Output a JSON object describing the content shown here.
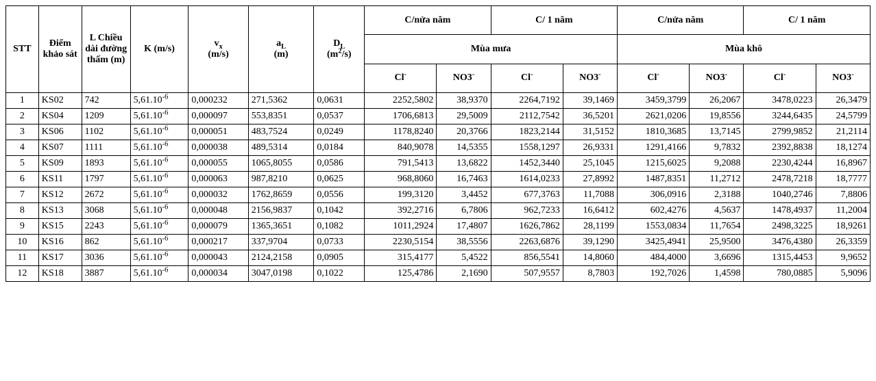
{
  "table": {
    "header": {
      "stt": "STT",
      "diem": "Điểm khảo sát",
      "l": "L Chiều dài đường thấm (m)",
      "k": "K (m/s)",
      "vx_line1": "v",
      "vx_sub": "x",
      "vx_line2": "(m/s)",
      "al_line1": "a",
      "al_sub": "L",
      "al_line2": "(m)",
      "dl_line1": "D",
      "dl_sub": "L",
      "dl_line2": "(m",
      "dl_sup": "2",
      "dl_line3": "/s)",
      "c_nua_nam": "C/nửa năm",
      "c_1_nam": "C/ 1 năm",
      "mua_mua": "Mùa mưa",
      "mua_kho": "Mùa khô",
      "cl_label": "Cl",
      "cl_sup": "-",
      "no3_label": "NO3",
      "no3_sup": "-"
    },
    "k_display": {
      "mantissa": "5,61.10",
      "exp": "-6"
    },
    "col_align": [
      "c-idx",
      "c-left",
      "c-left",
      "c-left",
      "c-left",
      "c-left",
      "c-left",
      "c-right",
      "c-right",
      "c-right",
      "c-right",
      "c-right",
      "c-right",
      "c-right",
      "c-right"
    ],
    "rows": [
      {
        "stt": "1",
        "diem": "KS02",
        "l": "742",
        "vx": "0,000232",
        "al": "271,5362",
        "dl": "0,0631",
        "mm_hn_cl": "2252,5802",
        "mm_hn_no3": "38,9370",
        "mm_1n_cl": "2264,7192",
        "mm_1n_no3": "39,1469",
        "mk_hn_cl": "3459,3799",
        "mk_hn_no3": "26,2067",
        "mk_1n_cl": "3478,0223",
        "mk_1n_no3": "26,3479"
      },
      {
        "stt": "2",
        "diem": "KS04",
        "l": "1209",
        "vx": "0,000097",
        "al": "553,8351",
        "dl": "0,0537",
        "mm_hn_cl": "1706,6813",
        "mm_hn_no3": "29,5009",
        "mm_1n_cl": "2112,7542",
        "mm_1n_no3": "36,5201",
        "mk_hn_cl": "2621,0206",
        "mk_hn_no3": "19,8556",
        "mk_1n_cl": "3244,6435",
        "mk_1n_no3": "24,5799"
      },
      {
        "stt": "3",
        "diem": "KS06",
        "l": "1102",
        "vx": "0,000051",
        "al": "483,7524",
        "dl": "0,0249",
        "mm_hn_cl": "1178,8240",
        "mm_hn_no3": "20,3766",
        "mm_1n_cl": "1823,2144",
        "mm_1n_no3": "31,5152",
        "mk_hn_cl": "1810,3685",
        "mk_hn_no3": "13,7145",
        "mk_1n_cl": "2799,9852",
        "mk_1n_no3": "21,2114"
      },
      {
        "stt": "4",
        "diem": "KS07",
        "l": "1111",
        "vx": "0,000038",
        "al": "489,5314",
        "dl": "0,0184",
        "mm_hn_cl": "840,9078",
        "mm_hn_no3": "14,5355",
        "mm_1n_cl": "1558,1297",
        "mm_1n_no3": "26,9331",
        "mk_hn_cl": "1291,4166",
        "mk_hn_no3": "9,7832",
        "mk_1n_cl": "2392,8838",
        "mk_1n_no3": "18,1274"
      },
      {
        "stt": "5",
        "diem": "KS09",
        "l": "1893",
        "vx": "0,000055",
        "al": "1065,8055",
        "dl": "0,0586",
        "mm_hn_cl": "791,5413",
        "mm_hn_no3": "13,6822",
        "mm_1n_cl": "1452,3440",
        "mm_1n_no3": "25,1045",
        "mk_hn_cl": "1215,6025",
        "mk_hn_no3": "9,2088",
        "mk_1n_cl": "2230,4244",
        "mk_1n_no3": "16,8967"
      },
      {
        "stt": "6",
        "diem": "KS11",
        "l": "1797",
        "vx": "0,000063",
        "al": "987,8210",
        "dl": "0,0625",
        "mm_hn_cl": "968,8060",
        "mm_hn_no3": "16,7463",
        "mm_1n_cl": "1614,0233",
        "mm_1n_no3": "27,8992",
        "mk_hn_cl": "1487,8351",
        "mk_hn_no3": "11,2712",
        "mk_1n_cl": "2478,7218",
        "mk_1n_no3": "18,7777"
      },
      {
        "stt": "7",
        "diem": "KS12",
        "l": "2672",
        "vx": "0,000032",
        "al": "1762,8659",
        "dl": "0,0556",
        "mm_hn_cl": "199,3120",
        "mm_hn_no3": "3,4452",
        "mm_1n_cl": "677,3763",
        "mm_1n_no3": "11,7088",
        "mk_hn_cl": "306,0916",
        "mk_hn_no3": "2,3188",
        "mk_1n_cl": "1040,2746",
        "mk_1n_no3": "7,8806"
      },
      {
        "stt": "8",
        "diem": "KS13",
        "l": "3068",
        "vx": "0,000048",
        "al": "2156,9837",
        "dl": "0,1042",
        "mm_hn_cl": "392,2716",
        "mm_hn_no3": "6,7806",
        "mm_1n_cl": "962,7233",
        "mm_1n_no3": "16,6412",
        "mk_hn_cl": "602,4276",
        "mk_hn_no3": "4,5637",
        "mk_1n_cl": "1478,4937",
        "mk_1n_no3": "11,2004"
      },
      {
        "stt": "9",
        "diem": "KS15",
        "l": "2243",
        "vx": "0,000079",
        "al": "1365,3651",
        "dl": "0,1082",
        "mm_hn_cl": "1011,2924",
        "mm_hn_no3": "17,4807",
        "mm_1n_cl": "1626,7862",
        "mm_1n_no3": "28,1199",
        "mk_hn_cl": "1553,0834",
        "mk_hn_no3": "11,7654",
        "mk_1n_cl": "2498,3225",
        "mk_1n_no3": "18,9261"
      },
      {
        "stt": "10",
        "diem": "KS16",
        "l": "862",
        "vx": "0,000217",
        "al": "337,9704",
        "dl": "0,0733",
        "mm_hn_cl": "2230,5154",
        "mm_hn_no3": "38,5556",
        "mm_1n_cl": "2263,6876",
        "mm_1n_no3": "39,1290",
        "mk_hn_cl": "3425,4941",
        "mk_hn_no3": "25,9500",
        "mk_1n_cl": "3476,4380",
        "mk_1n_no3": "26,3359"
      },
      {
        "stt": "11",
        "diem": "KS17",
        "l": "3036",
        "vx": "0,000043",
        "al": "2124,2158",
        "dl": "0,0905",
        "mm_hn_cl": "315,4177",
        "mm_hn_no3": "5,4522",
        "mm_1n_cl": "856,5541",
        "mm_1n_no3": "14,8060",
        "mk_hn_cl": "484,4000",
        "mk_hn_no3": "3,6696",
        "mk_1n_cl": "1315,4453",
        "mk_1n_no3": "9,9652"
      },
      {
        "stt": "12",
        "diem": "KS18",
        "l": "3887",
        "vx": "0,000034",
        "al": "3047,0198",
        "dl": "0,1022",
        "mm_hn_cl": "125,4786",
        "mm_hn_no3": "2,1690",
        "mm_1n_cl": "507,9557",
        "mm_1n_no3": "8,7803",
        "mk_hn_cl": "192,7026",
        "mk_hn_no3": "1,4598",
        "mk_1n_cl": "780,0885",
        "mk_1n_no3": "5,9096"
      }
    ]
  }
}
